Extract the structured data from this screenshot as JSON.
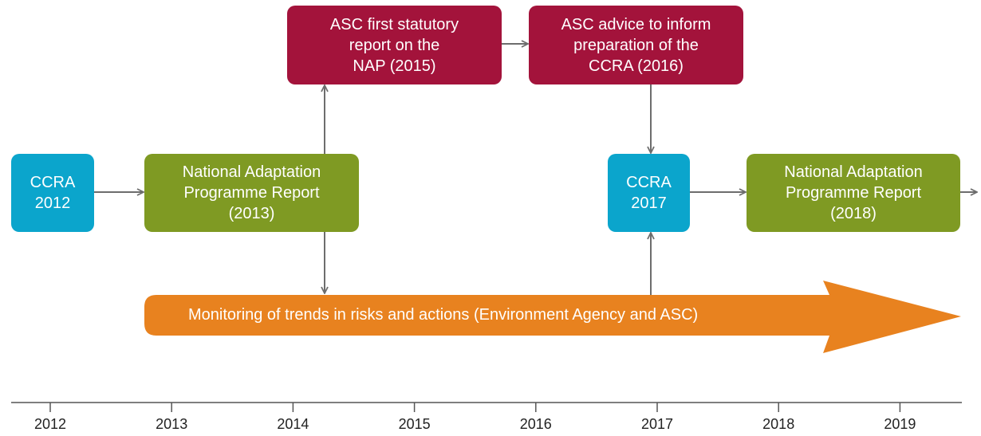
{
  "nodes": [
    {
      "lines": [
        "CCRA",
        "2012"
      ]
    },
    {
      "lines": [
        "National Adaptation",
        "Programme Report",
        "(2013)"
      ]
    },
    {
      "lines": [
        "ASC first statutory",
        "report on the",
        "NAP (2015)"
      ]
    },
    {
      "lines": [
        "ASC advice to inform",
        "preparation of the",
        "CCRA (2016)"
      ]
    },
    {
      "lines": [
        "CCRA",
        "2017"
      ]
    },
    {
      "lines": [
        "National Adaptation",
        "Programme Report",
        "(2018)"
      ]
    }
  ],
  "banner": {
    "label": "Monitoring of trends in risks and actions (Environment Agency and ASC)"
  },
  "timeline": {
    "years": [
      "2012",
      "2013",
      "2014",
      "2015",
      "2016",
      "2017",
      "2018",
      "2019"
    ]
  }
}
